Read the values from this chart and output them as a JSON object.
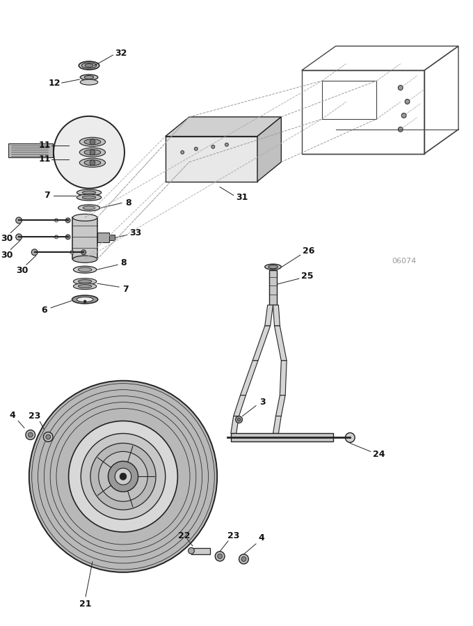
{
  "bg_color": "#ffffff",
  "line_color": "#444444",
  "dark_color": "#222222",
  "gray_color": "#999999",
  "light_gray": "#cccccc",
  "fig_width": 6.8,
  "fig_height": 8.99,
  "dpi": 100,
  "ref_code": "06074"
}
